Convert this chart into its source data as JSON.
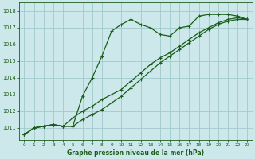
{
  "title": "Graphe pression niveau de la mer (hPa)",
  "background_color": "#cce8ea",
  "grid_color": "#a0c8cc",
  "line_color": "#1a5c1a",
  "xlim": [
    -0.5,
    23.5
  ],
  "ylim": [
    1010.3,
    1018.5
  ],
  "yticks": [
    1011,
    1012,
    1013,
    1014,
    1015,
    1016,
    1017,
    1018
  ],
  "xticks": [
    0,
    1,
    2,
    3,
    4,
    5,
    6,
    7,
    8,
    9,
    10,
    11,
    12,
    13,
    14,
    15,
    16,
    17,
    18,
    19,
    20,
    21,
    22,
    23
  ],
  "line1_x": [
    0,
    1,
    2,
    3,
    4,
    5,
    6,
    7,
    8,
    9,
    10,
    11,
    12,
    13,
    14,
    15,
    16,
    17,
    18,
    19,
    20,
    21,
    22,
    23
  ],
  "line1_y": [
    1010.6,
    1011.0,
    1011.1,
    1011.2,
    1011.1,
    1011.1,
    1012.9,
    1014.0,
    1015.3,
    1016.8,
    1017.2,
    1017.5,
    1017.2,
    1017.0,
    1016.6,
    1016.5,
    1017.0,
    1017.1,
    1017.7,
    1017.8,
    1017.8,
    1017.8,
    1017.7,
    1017.5
  ],
  "line2_x": [
    0,
    1,
    2,
    3,
    4,
    5,
    6,
    7,
    8,
    9,
    10,
    11,
    12,
    13,
    14,
    15,
    16,
    17,
    18,
    19,
    20,
    21,
    22,
    23
  ],
  "line2_y": [
    1010.6,
    1011.0,
    1011.1,
    1011.2,
    1011.1,
    1011.6,
    1012.0,
    1012.3,
    1012.7,
    1013.0,
    1013.3,
    1013.8,
    1014.3,
    1014.8,
    1015.2,
    1015.5,
    1015.9,
    1016.3,
    1016.7,
    1017.0,
    1017.3,
    1017.5,
    1017.6,
    1017.5
  ],
  "line3_x": [
    0,
    1,
    2,
    3,
    4,
    5,
    6,
    7,
    8,
    9,
    10,
    11,
    12,
    13,
    14,
    15,
    16,
    17,
    18,
    19,
    20,
    21,
    22,
    23
  ],
  "line3_y": [
    1010.6,
    1011.0,
    1011.1,
    1011.2,
    1011.1,
    1011.1,
    1011.5,
    1011.8,
    1012.1,
    1012.5,
    1012.9,
    1013.4,
    1013.9,
    1014.4,
    1014.9,
    1015.3,
    1015.7,
    1016.1,
    1016.5,
    1016.9,
    1017.2,
    1017.4,
    1017.5,
    1017.5
  ]
}
